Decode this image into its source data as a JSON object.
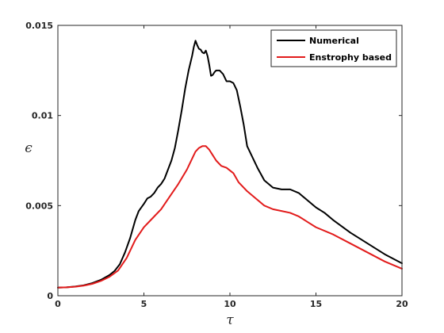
{
  "chart_data": {
    "type": "line",
    "title": "",
    "xlabel": "τ",
    "ylabel": "ϵ",
    "xlim": [
      0,
      20
    ],
    "ylim": [
      0,
      0.015
    ],
    "xticks": [
      0,
      5,
      10,
      15,
      20
    ],
    "xtick_labels": [
      "0",
      "5",
      "10",
      "15",
      "20"
    ],
    "yticks": [
      0,
      0.005,
      0.01,
      0.015
    ],
    "ytick_labels": [
      "0",
      "0.005",
      "0.01",
      "0.015"
    ],
    "grid": false,
    "legend": {
      "placement": "top-right"
    },
    "series": [
      {
        "name": "Numerical",
        "color": "#000000",
        "x": [
          0,
          0.5,
          1,
          1.5,
          2,
          2.5,
          3,
          3.3,
          3.6,
          3.9,
          4.2,
          4.5,
          4.7,
          5,
          5.2,
          5.4,
          5.6,
          5.8,
          6,
          6.2,
          6.4,
          6.6,
          6.8,
          7,
          7.2,
          7.4,
          7.6,
          7.8,
          7.9,
          8.0,
          8.1,
          8.2,
          8.3,
          8.4,
          8.5,
          8.6,
          8.7,
          8.8,
          8.9,
          9.0,
          9.1,
          9.2,
          9.4,
          9.6,
          9.8,
          10.0,
          10.2,
          10.4,
          10.6,
          10.8,
          11,
          11.3,
          11.6,
          12,
          12.5,
          13,
          13.5,
          14,
          14.5,
          15,
          15.5,
          16,
          17,
          18,
          19,
          20
        ],
        "y": [
          0.00045,
          0.00047,
          0.00051,
          0.00058,
          0.0007,
          0.00088,
          0.00115,
          0.00138,
          0.00175,
          0.0024,
          0.0032,
          0.0042,
          0.0047,
          0.0051,
          0.0054,
          0.0055,
          0.0057,
          0.006,
          0.0062,
          0.0065,
          0.007,
          0.0075,
          0.0082,
          0.0092,
          0.0103,
          0.0115,
          0.0125,
          0.0133,
          0.0138,
          0.01415,
          0.0139,
          0.0137,
          0.01365,
          0.0135,
          0.01345,
          0.0136,
          0.0133,
          0.0128,
          0.0122,
          0.01225,
          0.0124,
          0.0125,
          0.0125,
          0.0123,
          0.0119,
          0.0119,
          0.0118,
          0.0114,
          0.0105,
          0.0095,
          0.0083,
          0.0077,
          0.0071,
          0.0064,
          0.006,
          0.0059,
          0.0059,
          0.0057,
          0.0053,
          0.0049,
          0.0046,
          0.0042,
          0.0035,
          0.0029,
          0.0023,
          0.0018
        ]
      },
      {
        "name": "Enstrophy based",
        "color": "#e21b1b",
        "x": [
          0,
          0.5,
          1,
          1.5,
          2,
          2.5,
          3,
          3.5,
          4,
          4.5,
          5,
          5.5,
          6,
          6.5,
          7,
          7.5,
          7.8,
          8,
          8.2,
          8.4,
          8.6,
          8.8,
          9,
          9.2,
          9.5,
          9.8,
          10.2,
          10.5,
          11,
          11.5,
          12,
          12.5,
          13,
          13.5,
          14,
          14.5,
          15,
          16,
          17,
          18,
          19,
          20
        ],
        "y": [
          0.00045,
          0.00047,
          0.0005,
          0.00056,
          0.00066,
          0.00082,
          0.00105,
          0.0014,
          0.0021,
          0.0031,
          0.0038,
          0.0043,
          0.0048,
          0.0055,
          0.0062,
          0.007,
          0.0076,
          0.008,
          0.0082,
          0.0083,
          0.0083,
          0.0081,
          0.0078,
          0.0075,
          0.0072,
          0.0071,
          0.0068,
          0.0063,
          0.0058,
          0.0054,
          0.005,
          0.0048,
          0.0047,
          0.0046,
          0.0044,
          0.0041,
          0.0038,
          0.0034,
          0.0029,
          0.0024,
          0.0019,
          0.0015
        ]
      }
    ]
  }
}
